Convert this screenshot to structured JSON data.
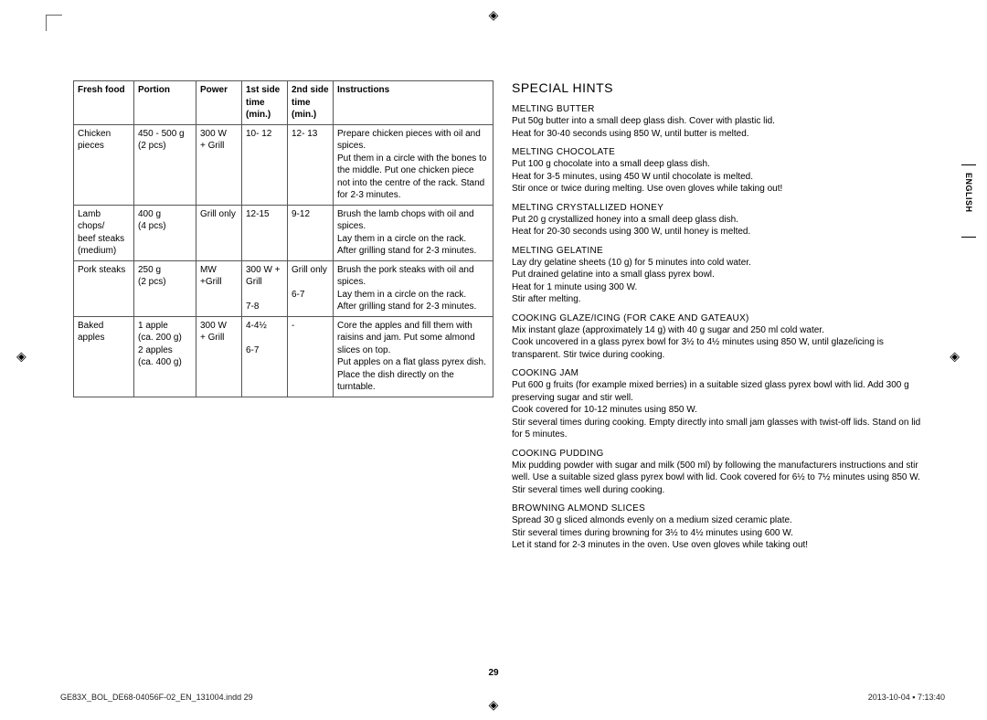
{
  "page_number": "29",
  "side_tab": "ENGLISH",
  "footer": {
    "left": "GE83X_BOL_DE68-04056F-02_EN_131004.indd   29",
    "right": "2013-10-04  ▪ 7:13:40"
  },
  "registration_glyph": "◈",
  "table": {
    "headers": {
      "food": "Fresh food",
      "portion": "Portion",
      "power": "Power",
      "t1": "1st side time (min.)",
      "t2": "2nd side time (min.)",
      "instr": "Instructions"
    },
    "rows": [
      {
        "food": "Chicken pieces",
        "portion": "450 - 500 g\n(2 pcs)",
        "power": "300 W\n+ Grill",
        "t1": "10- 12",
        "t2": "12- 13",
        "instr": "Prepare chicken pieces with oil and spices.\nPut them in a circle with the bones to the middle. Put one chicken piece not into the centre of the rack. Stand for 2-3 minutes."
      },
      {
        "food": "Lamb chops/\nbeef steaks (medium)",
        "portion": "400 g\n(4 pcs)",
        "power": "Grill only",
        "t1": "12-15",
        "t2": "9-12",
        "instr": "Brush the lamb chops with oil and spices.\nLay them in a circle on the rack.\nAfter grilling stand for 2-3 minutes."
      },
      {
        "food": "Pork steaks",
        "portion": "250 g\n(2 pcs)",
        "power": "MW\n+Grill",
        "t1": "300 W + Grill\n\n7-8",
        "t2": "Grill only\n\n6-7",
        "instr": "Brush the pork steaks with oil and spices.\nLay them in a circle on the rack.\nAfter grilling stand for 2-3 minutes."
      },
      {
        "food": "Baked apples",
        "portion": "1 apple\n(ca. 200 g)\n2 apples\n(ca. 400 g)",
        "power": "300 W\n+ Grill",
        "t1": "4-4½\n\n6-7",
        "t2": "-",
        "instr": "Core the apples and fill them with raisins and jam. Put some almond slices on top.\nPut apples on a flat glass pyrex dish.\nPlace the dish directly on the turntable."
      }
    ]
  },
  "hints": {
    "title": "SPECIAL HINTS",
    "items": [
      {
        "head": "MELTING BUTTER",
        "body": "Put 50g butter into a small deep glass dish. Cover with plastic lid.\nHeat for 30-40 seconds using 850 W, until butter is melted."
      },
      {
        "head": "MELTING CHOCOLATE",
        "body": "Put 100 g chocolate into a small deep glass dish.\nHeat for 3-5 minutes, using 450 W until chocolate is melted.\nStir once or twice during melting. Use oven gloves while taking out!"
      },
      {
        "head": "MELTING CRYSTALLIZED HONEY",
        "body": "Put 20 g crystallized honey into a small deep glass dish.\nHeat for 20-30 seconds using 300 W, until honey is melted."
      },
      {
        "head": "MELTING GELATINE",
        "body": "Lay dry gelatine sheets (10 g) for 5 minutes into cold water.\nPut drained gelatine into a small glass pyrex bowl.\nHeat for 1 minute using 300 W.\nStir after melting."
      },
      {
        "head": "COOKING GLAZE/ICING (FOR CAKE AND GATEAUX)",
        "body": "Mix instant glaze (approximately 14 g) with 40 g sugar and 250 ml cold water.\nCook uncovered in a glass pyrex bowl for 3½ to 4½ minutes using 850 W, until glaze/icing is transparent. Stir twice during cooking."
      },
      {
        "head": "COOKING JAM",
        "body": "Put 600 g fruits (for example mixed berries) in a suitable sized glass pyrex bowl with lid. Add 300 g preserving sugar and stir well.\nCook covered for 10-12 minutes using 850 W.\nStir several times during cooking. Empty directly into small jam glasses with twist-off lids. Stand on lid for 5 minutes."
      },
      {
        "head": "COOKING PUDDING",
        "body": "Mix pudding powder with sugar and milk (500 ml) by following the manufacturers instructions and stir well. Use a suitable sized glass pyrex bowl with lid. Cook covered for 6½ to 7½ minutes using 850 W.\nStir several times well during cooking."
      },
      {
        "head": "BROWNING ALMOND SLICES",
        "body": "Spread 30 g sliced almonds evenly on a medium sized ceramic plate.\nStir several times during browning for 3½ to 4½ minutes using 600 W.\nLet it stand for 2-3 minutes in the oven. Use oven gloves while taking out!"
      }
    ]
  }
}
